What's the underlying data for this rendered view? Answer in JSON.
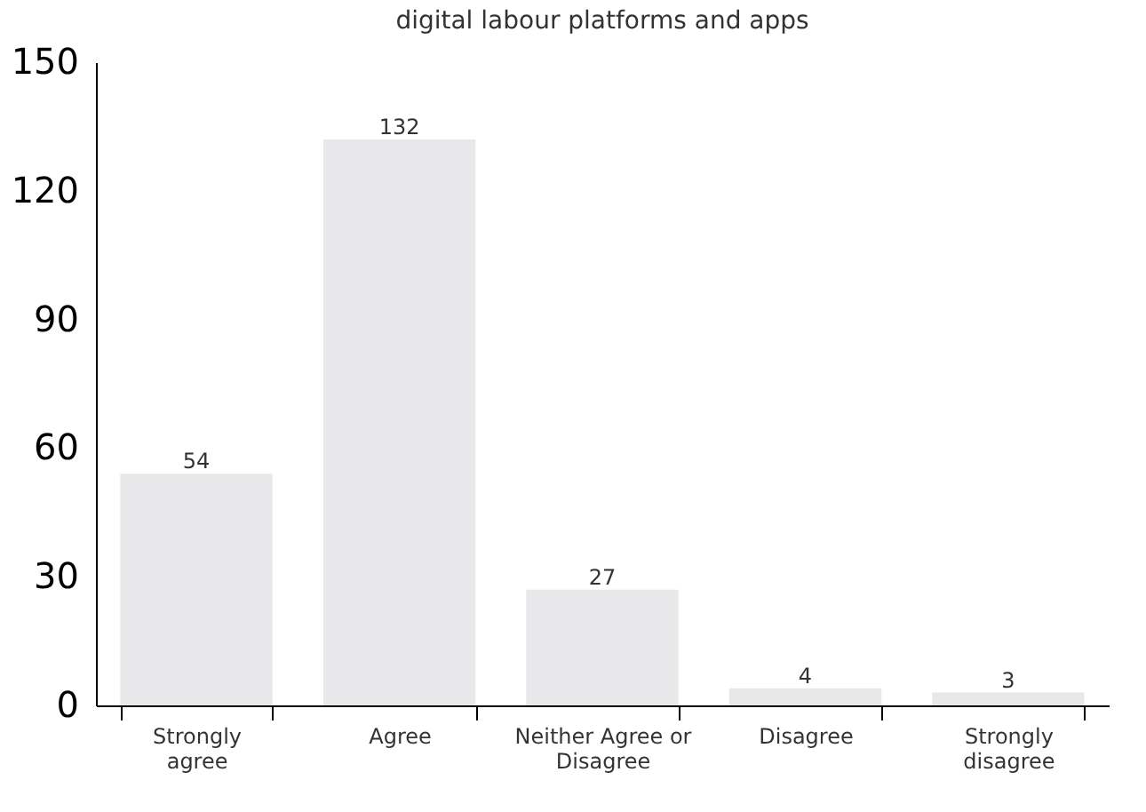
{
  "chart_data": {
    "type": "bar",
    "title": "digital labour platforms and apps",
    "categories": [
      "Strongly agree",
      "Agree",
      "Neither Agree or Disagree",
      "Disagree",
      "Strongly disagree"
    ],
    "values": [
      54,
      132,
      27,
      4,
      3
    ],
    "color": "#e8e8ea",
    "ylim": [
      0,
      150
    ],
    "yticks": [
      0,
      30,
      60,
      90,
      120,
      150
    ],
    "data_labels": true,
    "grid": false
  }
}
